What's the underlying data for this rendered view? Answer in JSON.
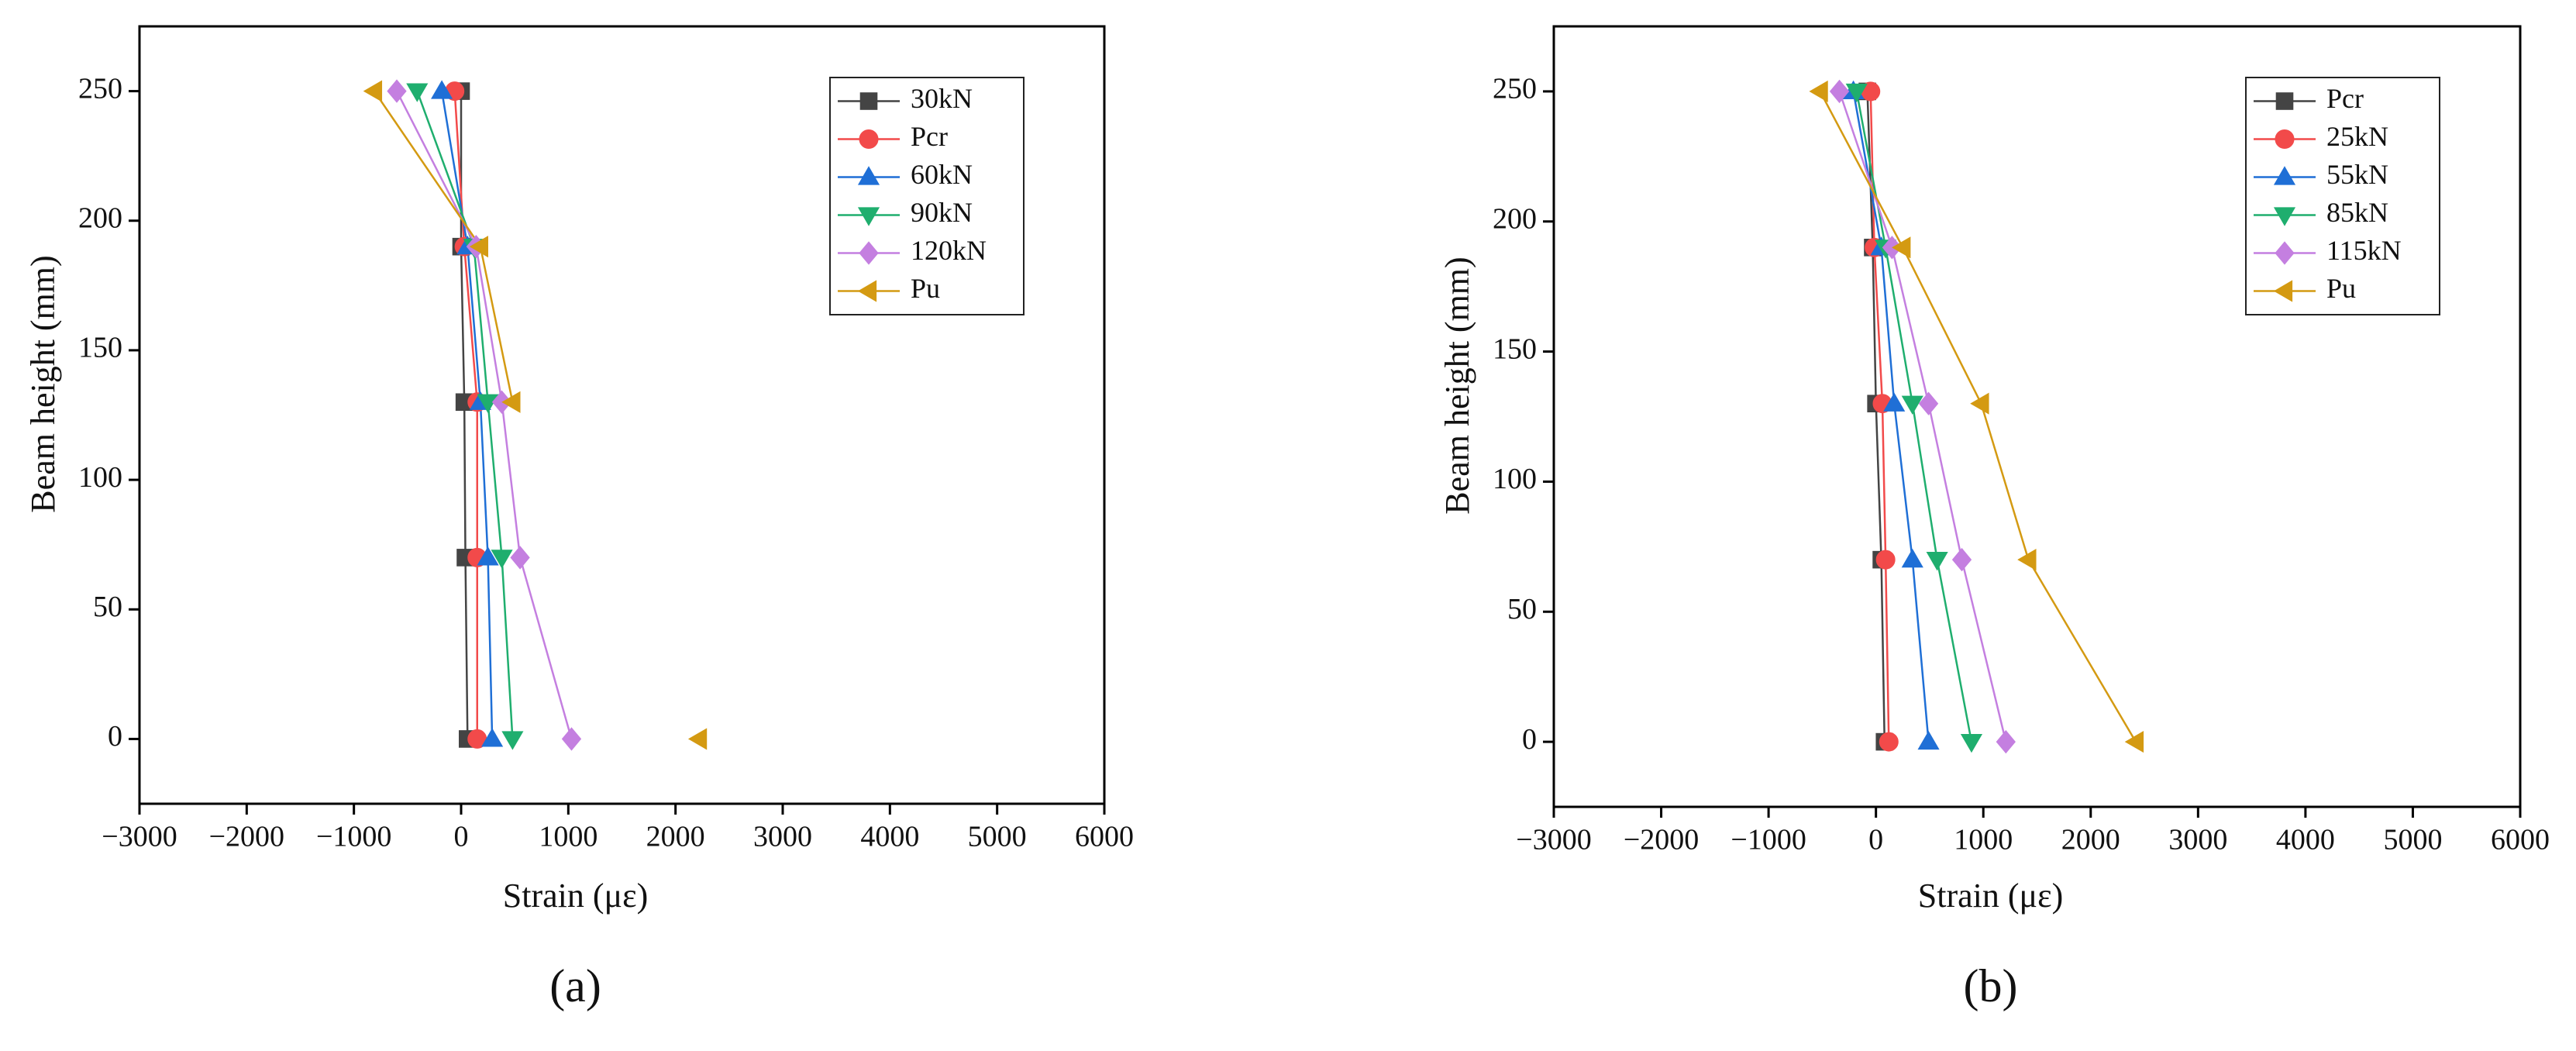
{
  "chart_data": [
    {
      "type": "line",
      "label": "(a)",
      "x_label": "Strain (με)",
      "y_label": "Beam height (mm)",
      "xlim": [
        -3000,
        6000
      ],
      "ylim": [
        -25,
        275
      ],
      "xticks": [
        {
          "value": -3000,
          "label": "−3000"
        },
        {
          "value": -2000,
          "label": "−2000"
        },
        {
          "value": -1000,
          "label": "−1000"
        },
        0,
        1000,
        2000,
        3000,
        4000,
        5000,
        6000
      ],
      "yticks": [
        0,
        50,
        100,
        150,
        200,
        250
      ],
      "legend": "upper right",
      "series": [
        {
          "name": "30kN",
          "color": "#444444",
          "marker": "square",
          "x": [
            60,
            40,
            30,
            0,
            0
          ],
          "y": [
            0,
            70,
            130,
            190,
            250
          ]
        },
        {
          "name": "Pcr",
          "color": "#f24a4a",
          "marker": "circle",
          "x": [
            150,
            150,
            150,
            30,
            -60
          ],
          "y": [
            0,
            70,
            130,
            190,
            250
          ]
        },
        {
          "name": "60kN",
          "color": "#1f6fd6",
          "marker": "triangle-up",
          "x": [
            290,
            250,
            180,
            60,
            -180
          ],
          "y": [
            0,
            70,
            130,
            190,
            250
          ]
        },
        {
          "name": "90kN",
          "color": "#1fae6e",
          "marker": "triangle-down",
          "x": [
            480,
            380,
            250,
            120,
            -410
          ],
          "y": [
            0,
            70,
            130,
            190,
            250
          ]
        },
        {
          "name": "120kN",
          "color": "#c47fe0",
          "marker": "diamond",
          "x": [
            1030,
            550,
            380,
            140,
            -600
          ],
          "y": [
            0,
            70,
            130,
            190,
            250
          ]
        },
        {
          "name": "Pu",
          "color": "#d49a12",
          "marker": "triangle-left",
          "x": [
            2220,
            null,
            480,
            180,
            -810
          ],
          "y": [
            0,
            null,
            130,
            190,
            250
          ]
        }
      ]
    },
    {
      "type": "line",
      "label": "(b)",
      "x_label": "Strain (με)",
      "y_label": "Beam height (mm)",
      "xlim": [
        -3000,
        6000
      ],
      "ylim": [
        -25,
        275
      ],
      "xticks": [
        {
          "value": -3000,
          "label": "−3000"
        },
        {
          "value": -2000,
          "label": "−2000"
        },
        {
          "value": -1000,
          "label": "−1000"
        },
        0,
        1000,
        2000,
        3000,
        4000,
        5000,
        6000
      ],
      "yticks": [
        0,
        50,
        100,
        150,
        200,
        250
      ],
      "legend": "upper right",
      "series": [
        {
          "name": "Pcr",
          "color": "#444444",
          "marker": "square",
          "x": [
            80,
            50,
            0,
            -30,
            -80
          ],
          "y": [
            0,
            70,
            130,
            190,
            250
          ]
        },
        {
          "name": "25kN",
          "color": "#f24a4a",
          "marker": "circle",
          "x": [
            120,
            90,
            60,
            -15,
            -50
          ],
          "y": [
            0,
            70,
            130,
            190,
            250
          ]
        },
        {
          "name": "55kN",
          "color": "#1f6fd6",
          "marker": "triangle-up",
          "x": [
            490,
            340,
            170,
            50,
            -210
          ],
          "y": [
            0,
            70,
            130,
            190,
            250
          ]
        },
        {
          "name": "85kN",
          "color": "#1fae6e",
          "marker": "triangle-down",
          "x": [
            890,
            570,
            340,
            90,
            -180
          ],
          "y": [
            0,
            70,
            130,
            190,
            250
          ]
        },
        {
          "name": "115kN",
          "color": "#c47fe0",
          "marker": "diamond",
          "x": [
            1210,
            800,
            490,
            150,
            -340
          ],
          "y": [
            0,
            70,
            130,
            190,
            250
          ]
        },
        {
          "name": "Pu",
          "color": "#d49a12",
          "marker": "triangle-left",
          "x": [
            2420,
            1420,
            980,
            250,
            -520
          ],
          "y": [
            0,
            70,
            130,
            190,
            250
          ]
        }
      ]
    }
  ]
}
